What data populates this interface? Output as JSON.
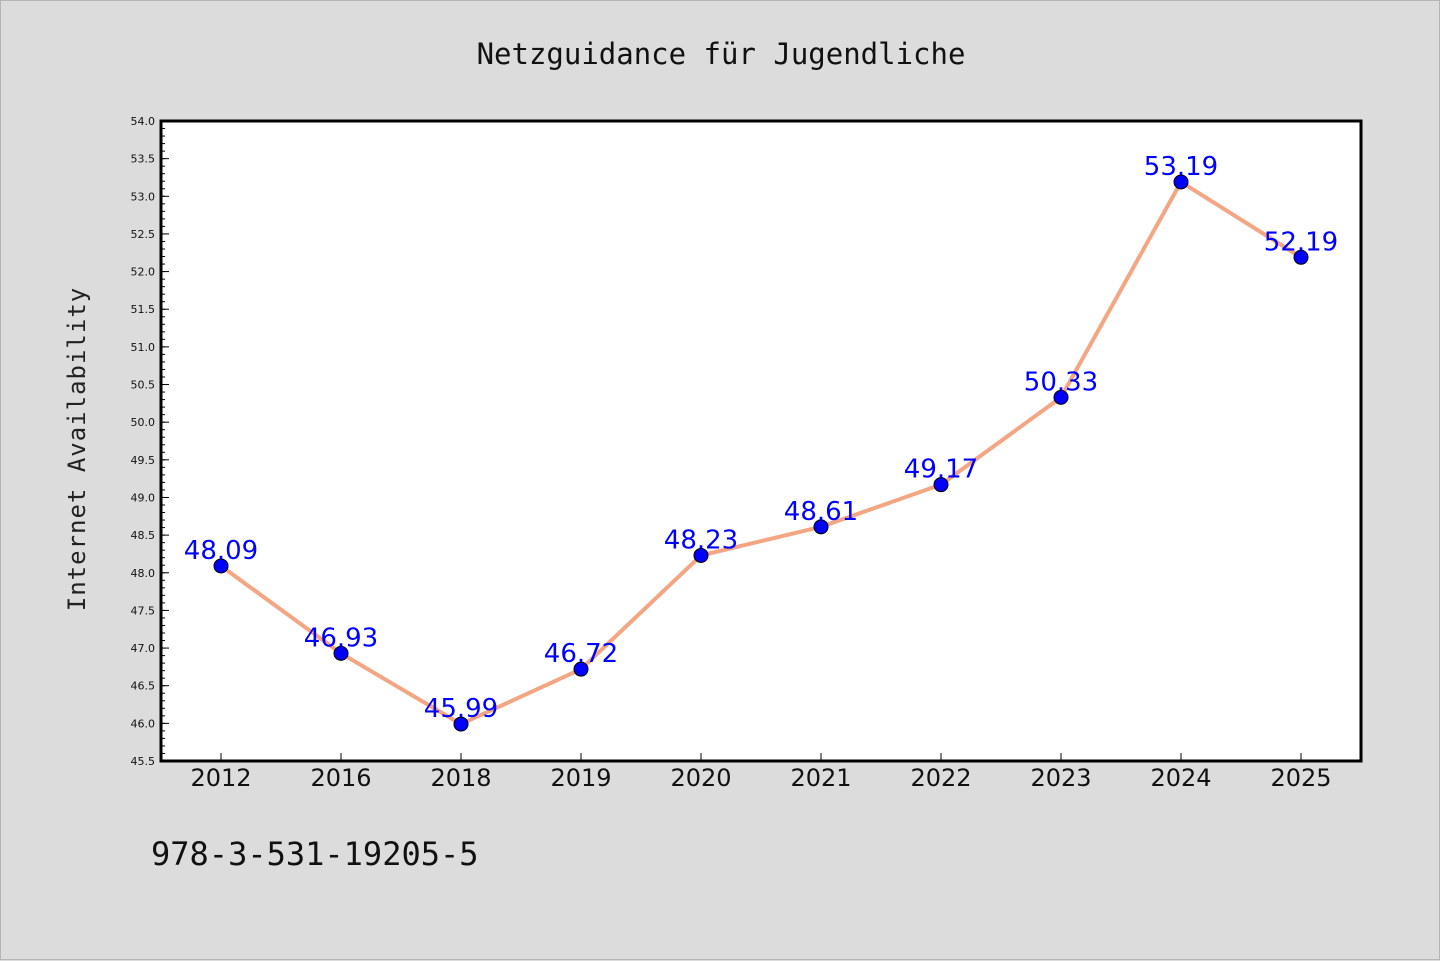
{
  "chart_data": {
    "type": "line",
    "title": "Netzguidance für Jugendliche",
    "xlabel": "",
    "ylabel": "Internet Availability",
    "categories": [
      "2012",
      "2016",
      "2018",
      "2019",
      "2020",
      "2021",
      "2022",
      "2023",
      "2024",
      "2025"
    ],
    "series": [
      {
        "values": [
          48.09,
          46.93,
          45.99,
          46.72,
          48.23,
          48.61,
          49.17,
          50.33,
          53.19,
          52.19
        ],
        "labels": [
          "48.09",
          "46.93",
          "45.99",
          "46.72",
          "48.23",
          "48.61",
          "49.17",
          "50.33",
          "53.19",
          "52.19"
        ]
      }
    ],
    "ylim": [
      45.5,
      54.0
    ],
    "yticks": [
      "45.5",
      "46.0",
      "46.5",
      "47.0",
      "47.5",
      "48.0",
      "48.5",
      "49.0",
      "49.5",
      "50.0",
      "50.5",
      "51.0",
      "51.5",
      "52.0",
      "52.5",
      "53.0",
      "53.5",
      "54.0"
    ],
    "grid": false,
    "line_color": "#f4a582",
    "marker_color": "#0000ff",
    "label_color": "#0000ff"
  },
  "footer": {
    "isbn": "978-3-531-19205-5"
  }
}
